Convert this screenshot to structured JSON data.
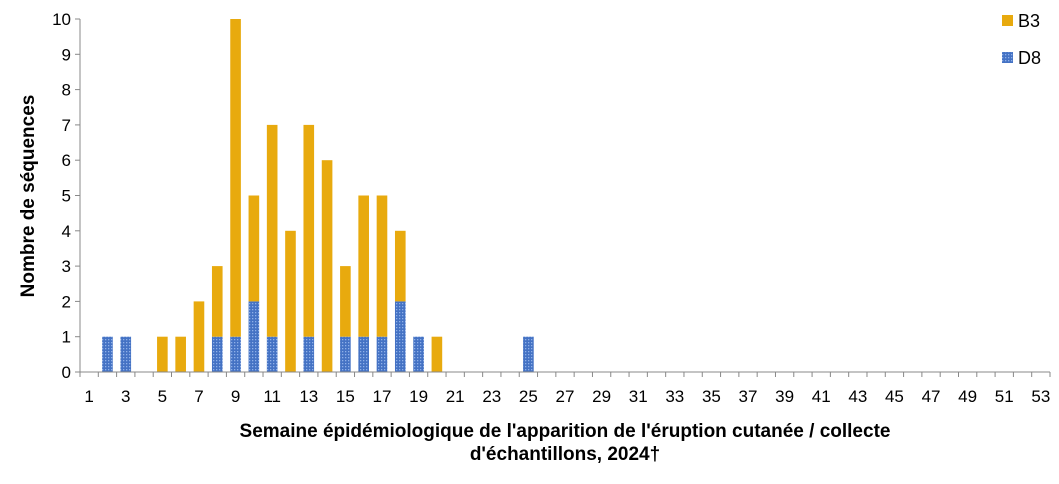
{
  "chart_data": {
    "type": "bar",
    "stacked": true,
    "x": [
      1,
      2,
      3,
      4,
      5,
      6,
      7,
      8,
      9,
      10,
      11,
      12,
      13,
      14,
      15,
      16,
      17,
      18,
      19,
      20,
      21,
      22,
      23,
      24,
      25,
      26,
      27,
      28,
      29,
      30,
      31,
      32,
      33,
      34,
      35,
      36,
      37,
      38,
      39,
      40,
      41,
      42,
      43,
      44,
      45,
      46,
      47,
      48,
      49,
      50,
      51,
      52,
      53
    ],
    "x_tick_labels": [
      "1",
      "3",
      "5",
      "7",
      "9",
      "11",
      "13",
      "15",
      "17",
      "19",
      "21",
      "23",
      "25",
      "27",
      "29",
      "31",
      "33",
      "35",
      "37",
      "39",
      "41",
      "43",
      "45",
      "47",
      "49",
      "51",
      "53"
    ],
    "series": [
      {
        "name": "D8",
        "color": "#4472c4",
        "values": [
          0,
          1,
          1,
          0,
          0,
          0,
          0,
          1,
          1,
          2,
          1,
          0,
          1,
          0,
          1,
          1,
          1,
          2,
          1,
          0,
          0,
          0,
          0,
          0,
          1,
          0,
          0,
          0,
          0,
          0,
          0,
          0,
          0,
          0,
          0,
          0,
          0,
          0,
          0,
          0,
          0,
          0,
          0,
          0,
          0,
          0,
          0,
          0,
          0,
          0,
          0,
          0,
          0
        ]
      },
      {
        "name": "B3",
        "color": "#e8aa0e",
        "values": [
          0,
          0,
          0,
          0,
          1,
          1,
          2,
          2,
          9,
          3,
          6,
          4,
          6,
          6,
          2,
          4,
          4,
          2,
          0,
          1,
          0,
          0,
          0,
          0,
          0,
          0,
          0,
          0,
          0,
          0,
          0,
          0,
          0,
          0,
          0,
          0,
          0,
          0,
          0,
          0,
          0,
          0,
          0,
          0,
          0,
          0,
          0,
          0,
          0,
          0,
          0,
          0,
          0
        ]
      }
    ],
    "ylim": [
      0,
      10
    ],
    "y_ticks": [
      "0",
      "1",
      "2",
      "3",
      "4",
      "5",
      "6",
      "7",
      "8",
      "9",
      "10"
    ],
    "ylabel": "Nombre de séquences",
    "xlabel_line1": "Semaine épidémiologique de l'apparition de l'éruption cutanée / collecte",
    "xlabel_line2": "d'échantillons, 2024†",
    "legend": {
      "position": "top-right",
      "items": [
        {
          "label": "B3",
          "color": "#e8aa0e"
        },
        {
          "label": "D8",
          "color": "#4472c4"
        }
      ]
    },
    "grid": false
  }
}
